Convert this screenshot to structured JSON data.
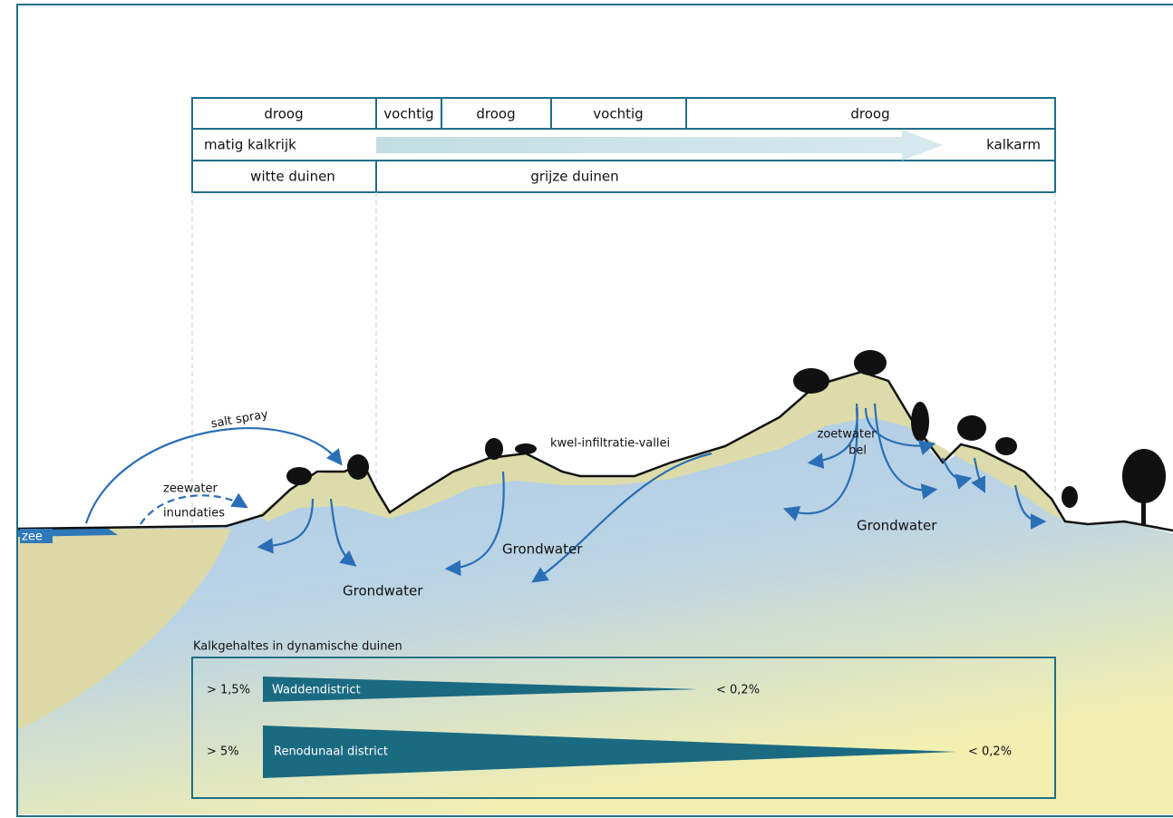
{
  "table": {
    "moisture": [
      "droog",
      "vochtig",
      "droog",
      "vochtig",
      "droog"
    ],
    "lime": {
      "left": "matig kalkrijk",
      "right": "kalkarm"
    },
    "dunes": [
      "witte duinen",
      "grijze duinen"
    ]
  },
  "labels": {
    "sea": "zee",
    "seawater": "zeewater",
    "inundations": "inundaties",
    "salt_spray": "salt spray",
    "valley": "kwel-infiltratie-vallei",
    "freshwater": [
      "zoetwater",
      "bel"
    ],
    "groundwater": [
      "Grondwater",
      "Grondwater",
      "Grondwater"
    ]
  },
  "legend": {
    "title": "Kalkgehaltes in dynamische duinen",
    "rows": [
      {
        "high": "> 1,5%",
        "name": "Waddendistrict",
        "low": "< 0,2%"
      },
      {
        "high": "> 5%",
        "name": "Renodunaal district",
        "low": "< 0,2%"
      }
    ]
  }
}
